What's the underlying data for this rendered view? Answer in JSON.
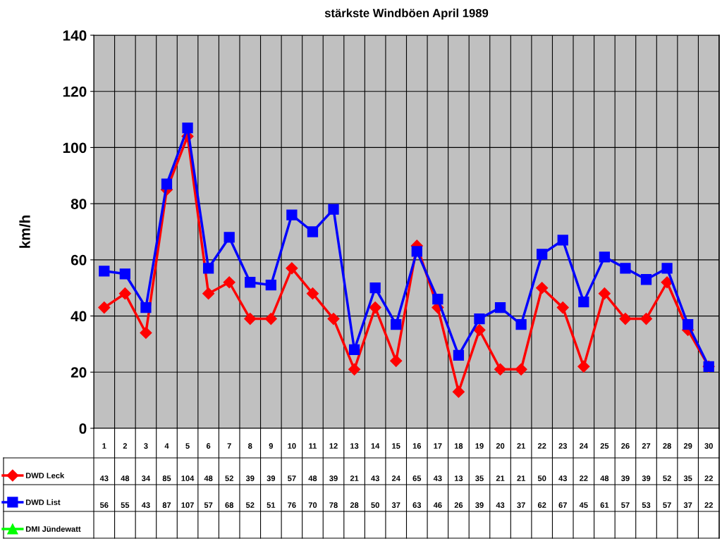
{
  "chart_data": {
    "type": "line",
    "title": "stärkste Windböen April 1989",
    "ylabel": "km/h",
    "categories": [
      "1",
      "2",
      "3",
      "4",
      "5",
      "6",
      "7",
      "8",
      "9",
      "10",
      "11",
      "12",
      "13",
      "14",
      "15",
      "16",
      "17",
      "18",
      "19",
      "20",
      "21",
      "22",
      "23",
      "24",
      "25",
      "26",
      "27",
      "28",
      "29",
      "30"
    ],
    "series": [
      {
        "name": "DWD Leck",
        "color": "#ff0000",
        "marker": "diamond",
        "values": [
          43,
          48,
          34,
          85,
          104,
          48,
          52,
          39,
          39,
          57,
          48,
          39,
          21,
          43,
          24,
          65,
          43,
          13,
          35,
          21,
          21,
          50,
          43,
          22,
          48,
          39,
          39,
          52,
          35,
          22
        ]
      },
      {
        "name": "DWD List",
        "color": "#0000ff",
        "marker": "square",
        "values": [
          56,
          55,
          43,
          87,
          107,
          57,
          68,
          52,
          51,
          76,
          70,
          78,
          28,
          50,
          37,
          63,
          46,
          26,
          39,
          43,
          37,
          62,
          67,
          45,
          61,
          57,
          53,
          57,
          37,
          22
        ]
      },
      {
        "name": "DMI Jündewatt",
        "color": "#00ff00",
        "marker": "triangle",
        "values": [
          null,
          null,
          null,
          null,
          null,
          null,
          null,
          null,
          null,
          null,
          null,
          null,
          null,
          null,
          null,
          null,
          null,
          null,
          null,
          null,
          null,
          null,
          null,
          null,
          null,
          null,
          null,
          null,
          null,
          null
        ]
      }
    ],
    "ylim": [
      0,
      140
    ],
    "yticks": [
      0,
      20,
      40,
      60,
      80,
      100,
      120,
      140
    ],
    "grid": true,
    "legend": "bottom left",
    "data_labels": true
  }
}
